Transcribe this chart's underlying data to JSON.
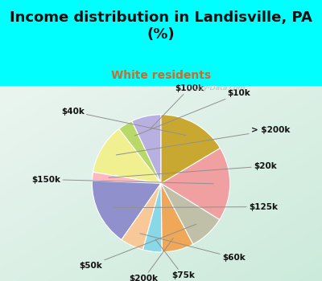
{
  "title": "Income distribution in Landisville, PA\n(%)",
  "subtitle": "White residents",
  "title_color": "#111111",
  "subtitle_color": "#c07030",
  "bg_color": "#00ffff",
  "labels": [
    "$100k",
    "$10k",
    "> $200k",
    "$20k",
    "$125k",
    "$60k",
    "$75k",
    "$200k",
    "$50k",
    "$150k",
    "$40k"
  ],
  "values": [
    7.0,
    3.5,
    12.0,
    2.0,
    16.0,
    5.5,
    4.5,
    7.5,
    8.5,
    17.5,
    16.5
  ],
  "colors": [
    "#b8b0e0",
    "#b8d868",
    "#f0f090",
    "#ffb8c0",
    "#9090cc",
    "#f8c898",
    "#88d8e8",
    "#f0a858",
    "#c0c0a8",
    "#f0a0a0",
    "#c8a830"
  ],
  "startangle": 90,
  "label_fontsize": 7.5,
  "title_fontsize": 13,
  "subtitle_fontsize": 10,
  "watermark": "ⓘ City-Data.com"
}
